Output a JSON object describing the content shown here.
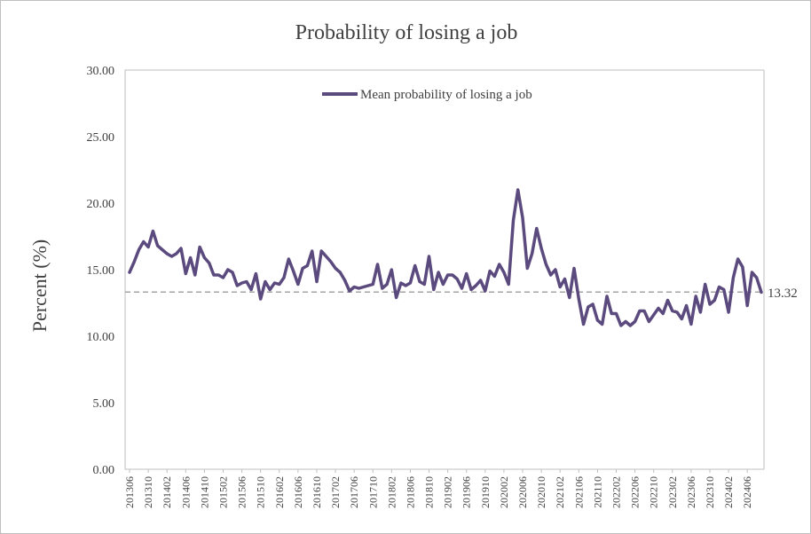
{
  "chart_data": {
    "type": "line",
    "title": "Probability  of losing  a job",
    "ylabel": "Percent (%)",
    "xlabel": "",
    "ylim": [
      0,
      30
    ],
    "yticks": [
      "0.00",
      "5.00",
      "10.00",
      "15.00",
      "20.00",
      "25.00",
      "30.00"
    ],
    "xticks": [
      "201306",
      "201310",
      "201402",
      "201406",
      "201410",
      "201502",
      "201506",
      "201510",
      "201602",
      "201606",
      "201610",
      "201702",
      "201706",
      "201710",
      "201802",
      "201806",
      "201810",
      "201902",
      "201906",
      "201910",
      "202002",
      "202006",
      "202010",
      "202102",
      "202106",
      "202110",
      "202202",
      "202206",
      "202210",
      "202302",
      "202306",
      "202310",
      "202402",
      "202406"
    ],
    "grid": false,
    "legend_position": "top-center",
    "series": [
      {
        "name": "Mean probability of losing a job",
        "color": "#5b4a7e",
        "start": "201306",
        "values": [
          14.8,
          15.6,
          16.5,
          17.1,
          16.7,
          17.9,
          16.8,
          16.5,
          16.2,
          16.0,
          16.2,
          16.6,
          14.7,
          15.9,
          14.6,
          16.7,
          15.9,
          15.5,
          14.6,
          14.6,
          14.4,
          15.0,
          14.8,
          13.8,
          14.0,
          14.1,
          13.5,
          14.7,
          12.8,
          14.1,
          13.5,
          14.0,
          13.9,
          14.4,
          15.8,
          14.9,
          13.9,
          15.1,
          15.3,
          16.4,
          14.1,
          16.4,
          16.0,
          15.6,
          15.1,
          14.8,
          14.2,
          13.4,
          13.7,
          13.6,
          13.7,
          13.8,
          13.9,
          15.4,
          13.6,
          13.9,
          15.0,
          12.9,
          14.0,
          13.8,
          14.0,
          15.3,
          14.1,
          13.9,
          16.0,
          13.5,
          14.8,
          13.9,
          14.6,
          14.6,
          14.3,
          13.6,
          14.7,
          13.5,
          13.8,
          14.2,
          13.4,
          14.9,
          14.5,
          15.4,
          14.8,
          13.9,
          18.7,
          21.0,
          18.9,
          15.1,
          16.2,
          18.1,
          16.6,
          15.4,
          14.6,
          15.0,
          13.7,
          14.3,
          12.9,
          15.1,
          12.8,
          10.9,
          12.2,
          12.4,
          11.2,
          10.9,
          13.0,
          11.7,
          11.7,
          10.8,
          11.1,
          10.8,
          11.1,
          11.9,
          11.9,
          11.1,
          11.6,
          12.1,
          11.7,
          12.7,
          11.9,
          11.8,
          11.3,
          12.3,
          10.9,
          13.0,
          11.8,
          13.9,
          12.4,
          12.7,
          13.7,
          13.5,
          11.8,
          14.4,
          15.8,
          15.2,
          12.3,
          14.8,
          14.4,
          13.3
        ]
      }
    ],
    "reference_line": {
      "value": 13.32,
      "label": "13.32",
      "style": "dashed",
      "color": "#a6a6a6"
    }
  }
}
